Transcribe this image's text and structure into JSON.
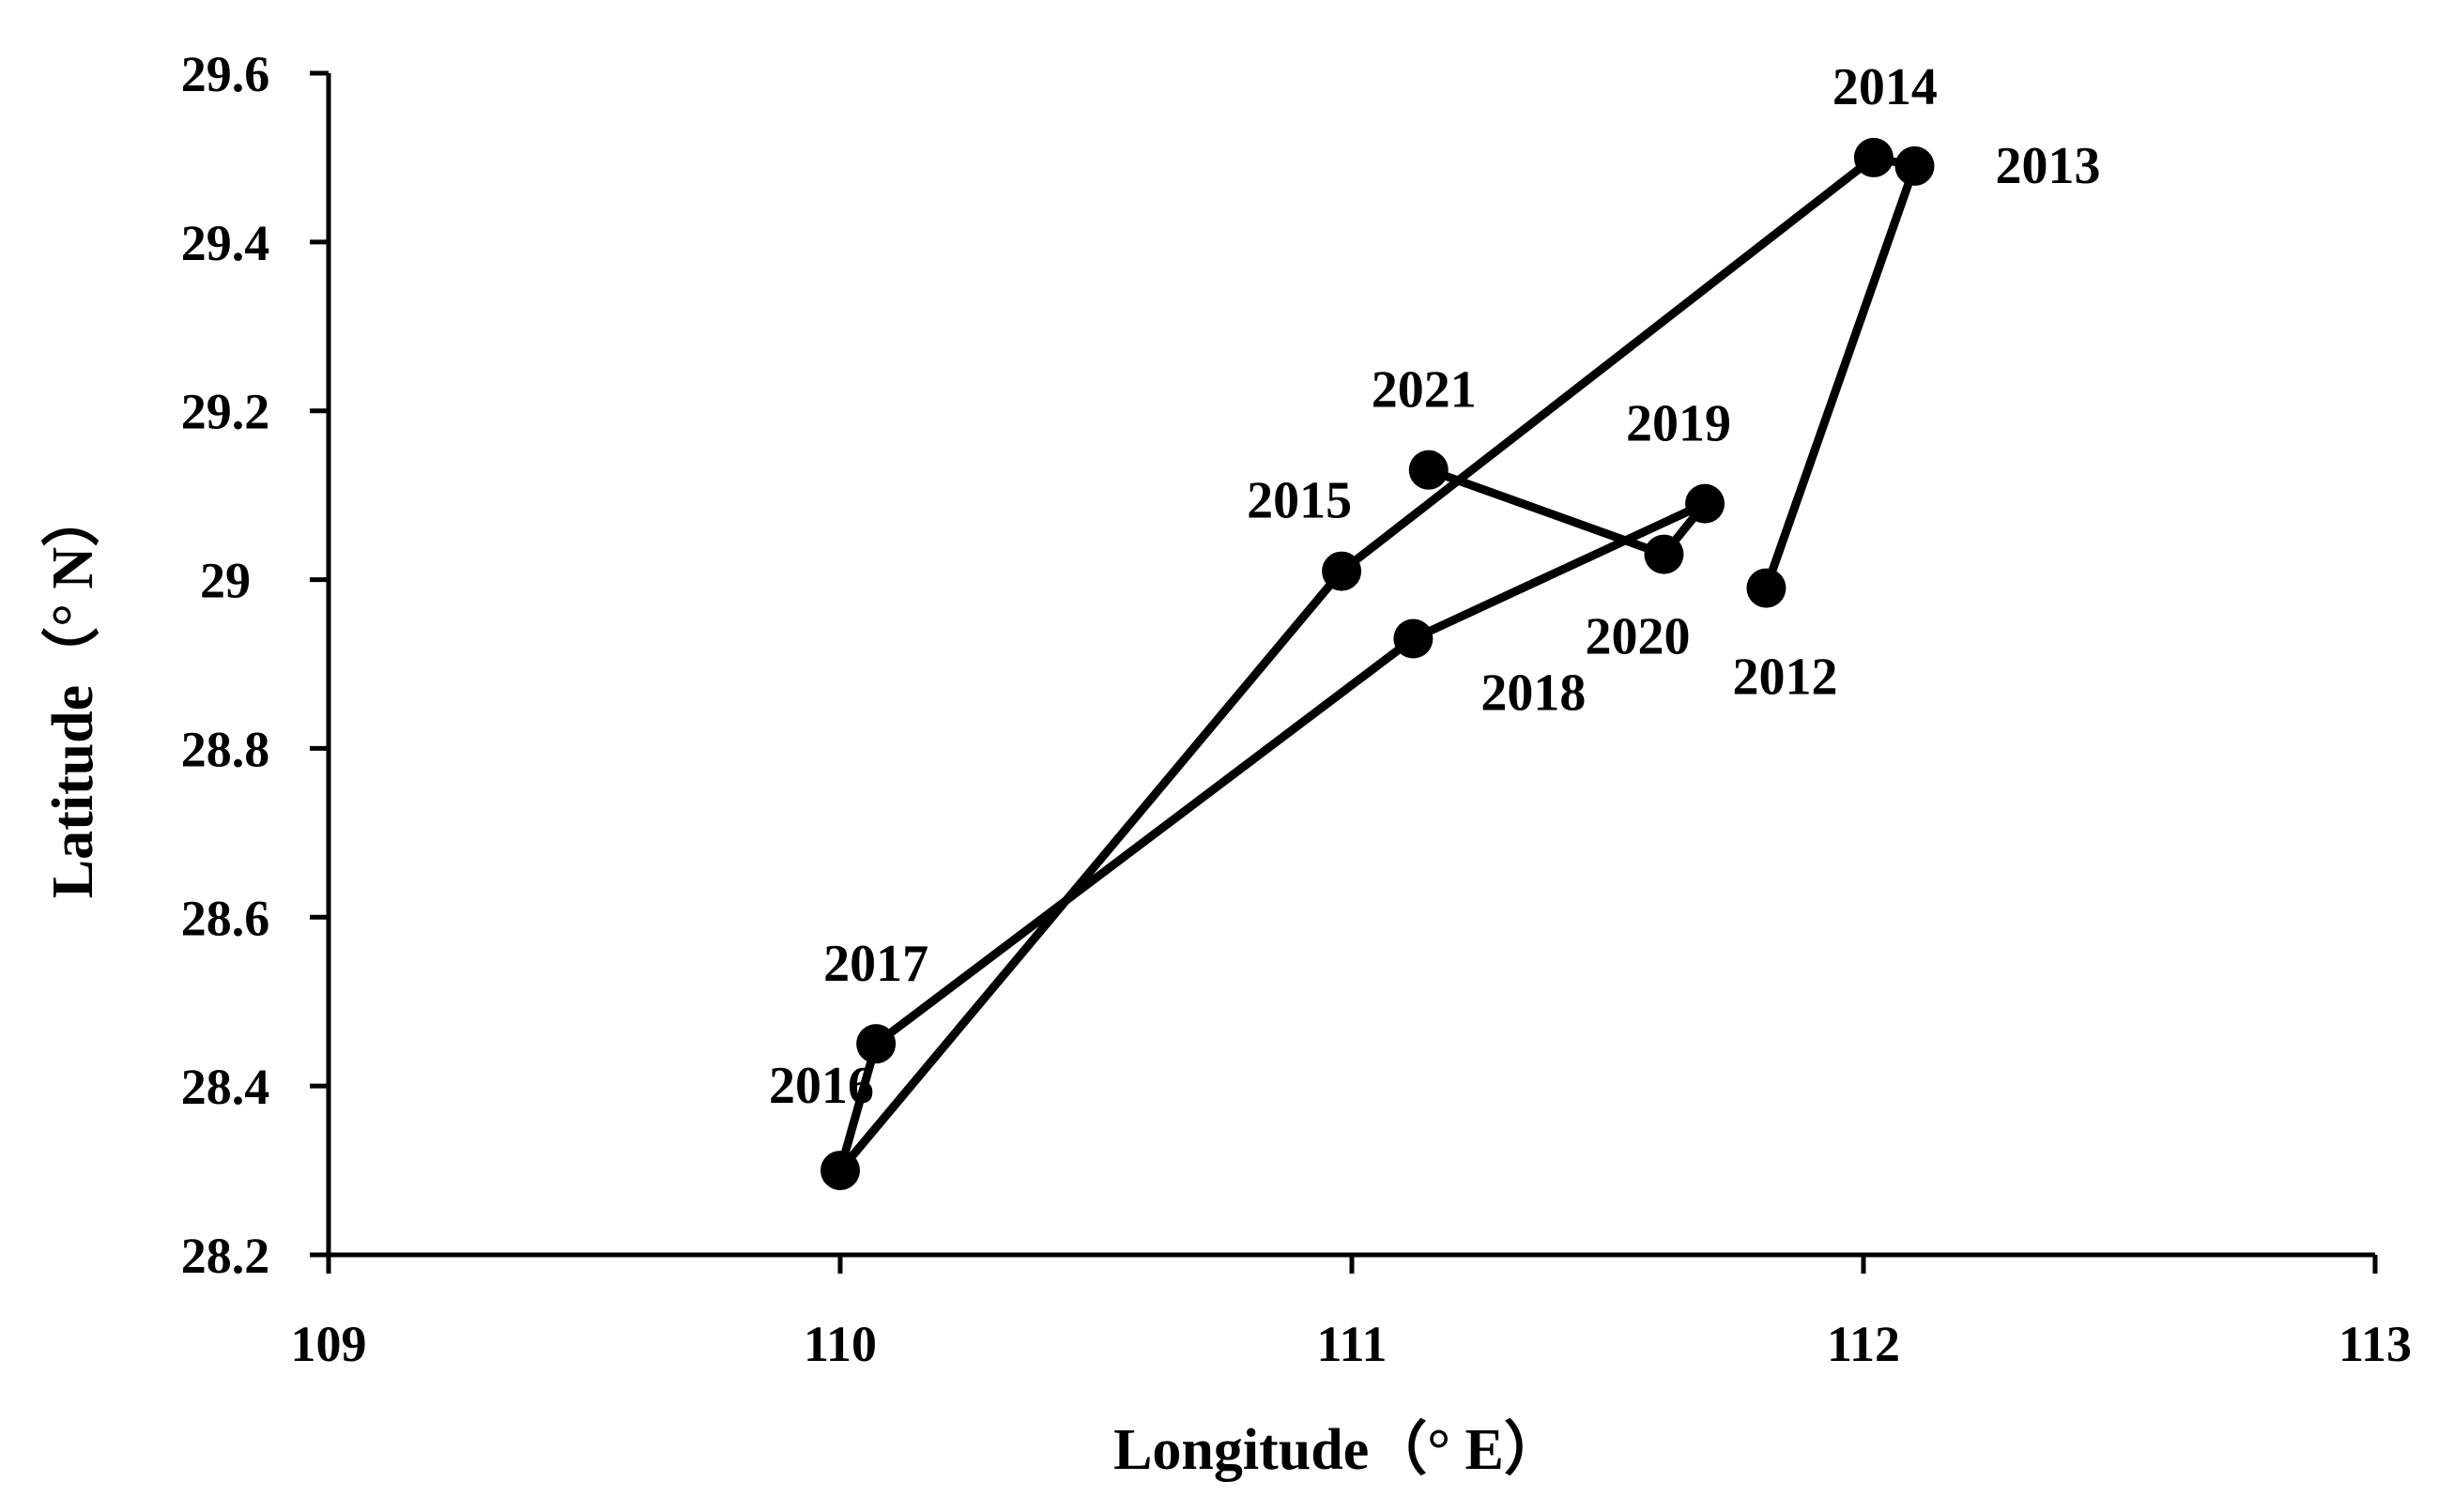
{
  "chart_data": {
    "type": "scatter",
    "title": "",
    "xlabel": "Longitude（°  E）",
    "ylabel": "Latitude（°  N）",
    "xlim": [
      109,
      113
    ],
    "ylim": [
      28.2,
      29.6
    ],
    "xticks": [
      "109",
      "110",
      "111",
      "112",
      "113"
    ],
    "yticks": [
      "28.2",
      "28.4",
      "28.6",
      "28.8",
      "29",
      "29.2",
      "29.4",
      "29.6"
    ],
    "grid": false,
    "legend": "none",
    "line_color": "#000000",
    "marker_color": "#000000",
    "series": [
      {
        "points": [
          {
            "label": "2012",
            "x": 111.81,
            "y": 28.99
          },
          {
            "label": "2013",
            "x": 112.1,
            "y": 29.49
          },
          {
            "label": "2014",
            "x": 112.02,
            "y": 29.5
          },
          {
            "label": "2015",
            "x": 110.98,
            "y": 29.01
          },
          {
            "label": "2016",
            "x": 110.0,
            "y": 28.3
          },
          {
            "label": "2017",
            "x": 110.07,
            "y": 28.45
          },
          {
            "label": "2018",
            "x": 111.12,
            "y": 28.93
          },
          {
            "label": "2019",
            "x": 111.69,
            "y": 29.09
          },
          {
            "label": "2020",
            "x": 111.61,
            "y": 29.03
          },
          {
            "label": "2021",
            "x": 111.15,
            "y": 29.13
          }
        ]
      }
    ]
  }
}
